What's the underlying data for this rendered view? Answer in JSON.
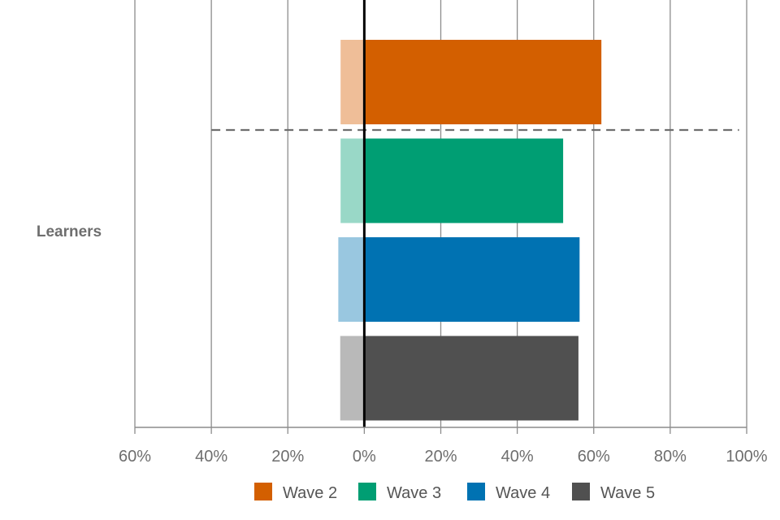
{
  "chart_data": {
    "type": "bar",
    "orientation": "horizontal",
    "stacked": "diverging",
    "category": "Learners",
    "xaxis": {
      "min": -60,
      "max": 100,
      "ticks": [
        -60,
        -40,
        -20,
        0,
        20,
        40,
        60,
        80,
        100
      ],
      "tick_labels": [
        "60%",
        "40%",
        "20%",
        "0%",
        "20%",
        "40%",
        "60%",
        "80%",
        "100%"
      ]
    },
    "grid": true,
    "reference_line": {
      "type": "dashed",
      "from": -40,
      "to": 98
    },
    "series": [
      {
        "name": "Wave 2",
        "negative": 6.2,
        "positive": 62,
        "color": "#d35f00",
        "light_color": "#efbe98"
      },
      {
        "name": "Wave 3",
        "negative": 6.2,
        "positive": 52,
        "color": "#009e73",
        "light_color": "#99d8c7"
      },
      {
        "name": "Wave 4",
        "negative": 6.8,
        "positive": 56.3,
        "color": "#0072b2",
        "light_color": "#99c7e0"
      },
      {
        "name": "Wave 5",
        "negative": 6.3,
        "positive": 56,
        "color": "#505050",
        "light_color": "#b9b9b9"
      }
    ],
    "legend": {
      "position": "bottom"
    }
  }
}
